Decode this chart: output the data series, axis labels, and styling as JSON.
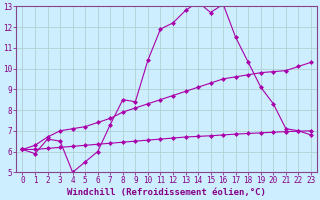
{
  "xlabel": "Windchill (Refroidissement éolien,°C)",
  "ylabel": "",
  "bg_color": "#cceeff",
  "line_color": "#aa00aa",
  "grid_color": "#aacccc",
  "xlim": [
    -0.5,
    23.5
  ],
  "ylim": [
    5,
    13
  ],
  "xticks": [
    0,
    1,
    2,
    3,
    4,
    5,
    6,
    7,
    8,
    9,
    10,
    11,
    12,
    13,
    14,
    15,
    16,
    17,
    18,
    19,
    20,
    21,
    22,
    23
  ],
  "yticks": [
    5,
    6,
    7,
    8,
    9,
    10,
    11,
    12,
    13
  ],
  "line1_x": [
    0,
    1,
    2,
    3,
    4,
    5,
    6,
    7,
    8,
    9,
    10,
    11,
    12,
    13,
    14,
    15,
    16,
    17,
    18,
    19,
    20,
    21,
    22,
    23
  ],
  "line1_y": [
    6.1,
    5.9,
    6.6,
    6.5,
    5.0,
    5.5,
    6.0,
    7.3,
    8.5,
    8.4,
    10.4,
    11.9,
    12.2,
    12.8,
    13.2,
    12.7,
    13.1,
    11.5,
    10.3,
    9.1,
    8.3,
    7.1,
    7.0,
    6.8
  ],
  "line2_x": [
    0,
    1,
    2,
    3,
    4,
    5,
    6,
    7,
    8,
    9,
    10,
    11,
    12,
    13,
    14,
    15,
    16,
    17,
    18,
    19,
    20,
    21,
    22,
    23
  ],
  "line2_y": [
    6.1,
    6.3,
    6.7,
    7.0,
    7.1,
    7.2,
    7.4,
    7.6,
    7.9,
    8.1,
    8.3,
    8.5,
    8.7,
    8.9,
    9.1,
    9.3,
    9.5,
    9.6,
    9.7,
    9.8,
    9.85,
    9.9,
    10.1,
    10.3
  ],
  "line3_x": [
    0,
    1,
    2,
    3,
    4,
    5,
    6,
    7,
    8,
    9,
    10,
    11,
    12,
    13,
    14,
    15,
    16,
    17,
    18,
    19,
    20,
    21,
    22,
    23
  ],
  "line3_y": [
    6.1,
    6.1,
    6.15,
    6.2,
    6.25,
    6.3,
    6.35,
    6.4,
    6.45,
    6.5,
    6.55,
    6.6,
    6.65,
    6.7,
    6.73,
    6.76,
    6.8,
    6.84,
    6.87,
    6.9,
    6.93,
    6.96,
    6.98,
    7.0
  ],
  "marker": "D",
  "markersize": 2.0,
  "linewidth": 0.8,
  "xlabel_fontsize": 6.5,
  "tick_fontsize": 5.5,
  "tick_color": "#880088",
  "axis_color": "#880088",
  "spine_color": "#884488"
}
